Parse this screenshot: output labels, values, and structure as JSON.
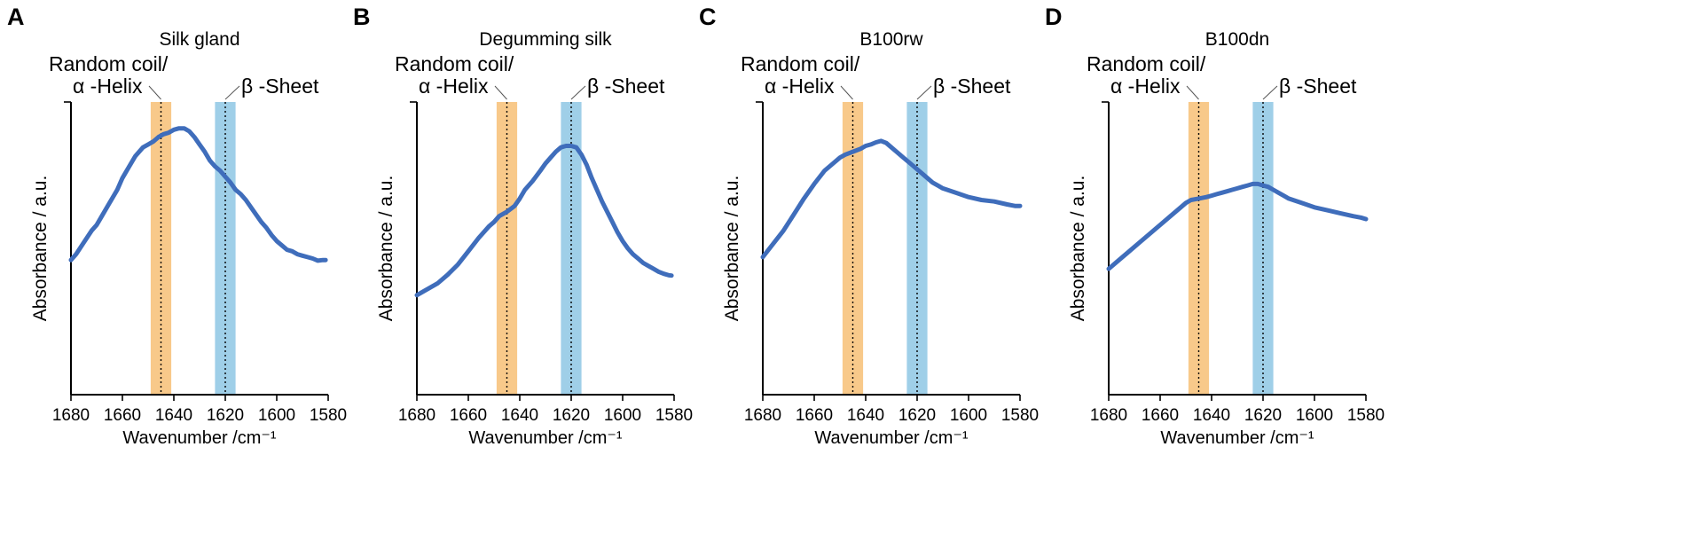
{
  "colors": {
    "curve": "#3f6dbb",
    "random_coil_band": "#f8c98a",
    "beta_sheet_band": "#9fcfe8"
  },
  "shared": {
    "random_coil_label_line1": "Random coil/",
    "random_coil_label_line2": "α -Helix",
    "beta_sheet_label": "β -Sheet"
  },
  "chart_data": [
    {
      "type": "line",
      "panel": "A",
      "title": "Silk gland",
      "xlabel": "Wavenumber /cm⁻¹",
      "ylabel": "Absorbance / a.u.",
      "xlim": [
        1680,
        1580
      ],
      "ylim": [
        0,
        1
      ],
      "xticks": [
        "1680",
        "1660",
        "1640",
        "1620",
        "1600",
        "1580"
      ],
      "bands": [
        {
          "name": "Random coil/α-Helix",
          "range": [
            1641,
            1649
          ],
          "center": 1645
        },
        {
          "name": "β-Sheet",
          "range": [
            1616,
            1624
          ],
          "center": 1620
        }
      ],
      "x": [
        1680,
        1678,
        1675,
        1672,
        1670,
        1668,
        1665,
        1662,
        1660,
        1658,
        1655,
        1652,
        1650,
        1648,
        1646,
        1644,
        1642,
        1640,
        1638,
        1636,
        1634,
        1632,
        1630,
        1628,
        1626,
        1624,
        1622,
        1620,
        1618,
        1616,
        1614,
        1612,
        1610,
        1608,
        1606,
        1604,
        1602,
        1600,
        1598,
        1596,
        1594,
        1592,
        1590,
        1588,
        1586,
        1584,
        1582,
        1581
      ],
      "y": [
        0.46,
        0.48,
        0.52,
        0.56,
        0.58,
        0.61,
        0.655,
        0.7,
        0.74,
        0.77,
        0.815,
        0.845,
        0.855,
        0.865,
        0.88,
        0.89,
        0.895,
        0.905,
        0.91,
        0.91,
        0.9,
        0.88,
        0.855,
        0.83,
        0.8,
        0.78,
        0.765,
        0.745,
        0.725,
        0.7,
        0.685,
        0.665,
        0.64,
        0.615,
        0.59,
        0.57,
        0.545,
        0.525,
        0.51,
        0.495,
        0.49,
        0.48,
        0.475,
        0.47,
        0.465,
        0.458,
        0.46,
        0.46
      ]
    },
    {
      "type": "line",
      "panel": "B",
      "title": "Degumming silk",
      "xlabel": "Wavenumber /cm⁻¹",
      "ylabel": "Absorbance / a.u.",
      "xlim": [
        1680,
        1580
      ],
      "ylim": [
        0,
        1
      ],
      "xticks": [
        "1680",
        "1660",
        "1640",
        "1620",
        "1600",
        "1580"
      ],
      "bands": [
        {
          "name": "Random coil/α-Helix",
          "range": [
            1641,
            1649
          ],
          "center": 1645
        },
        {
          "name": "β-Sheet",
          "range": [
            1616,
            1624
          ],
          "center": 1620
        }
      ],
      "x": [
        1680,
        1676,
        1672,
        1668,
        1664,
        1660,
        1656,
        1652,
        1650,
        1648,
        1645,
        1642,
        1640,
        1638,
        1635,
        1632,
        1630,
        1628,
        1626,
        1624,
        1622,
        1620,
        1618,
        1616,
        1614,
        1612,
        1610,
        1608,
        1606,
        1604,
        1602,
        1600,
        1598,
        1596,
        1594,
        1592,
        1590,
        1588,
        1586,
        1584,
        1582,
        1581
      ],
      "y": [
        0.34,
        0.36,
        0.38,
        0.41,
        0.445,
        0.49,
        0.535,
        0.575,
        0.59,
        0.61,
        0.625,
        0.645,
        0.67,
        0.7,
        0.73,
        0.765,
        0.79,
        0.81,
        0.83,
        0.845,
        0.85,
        0.85,
        0.845,
        0.82,
        0.785,
        0.74,
        0.7,
        0.66,
        0.625,
        0.59,
        0.555,
        0.525,
        0.5,
        0.48,
        0.465,
        0.45,
        0.44,
        0.43,
        0.42,
        0.413,
        0.408,
        0.407
      ]
    },
    {
      "type": "line",
      "panel": "C",
      "title": "B100rw",
      "xlabel": "Wavenumber /cm⁻¹",
      "ylabel": "Absorbance / a.u.",
      "xlim": [
        1680,
        1580
      ],
      "ylim": [
        0,
        1
      ],
      "xticks": [
        "1680",
        "1660",
        "1640",
        "1620",
        "1600",
        "1580"
      ],
      "bands": [
        {
          "name": "Random coil/α-Helix",
          "range": [
            1641,
            1649
          ],
          "center": 1645
        },
        {
          "name": "β-Sheet",
          "range": [
            1616,
            1624
          ],
          "center": 1620
        }
      ],
      "x": [
        1680,
        1676,
        1672,
        1668,
        1664,
        1660,
        1656,
        1652,
        1650,
        1648,
        1645,
        1642,
        1640,
        1638,
        1636,
        1634,
        1632,
        1630,
        1628,
        1626,
        1624,
        1622,
        1620,
        1618,
        1616,
        1614,
        1612,
        1610,
        1605,
        1600,
        1595,
        1590,
        1585,
        1582,
        1580
      ],
      "y": [
        0.47,
        0.515,
        0.56,
        0.615,
        0.67,
        0.72,
        0.765,
        0.795,
        0.81,
        0.82,
        0.83,
        0.84,
        0.85,
        0.855,
        0.862,
        0.867,
        0.86,
        0.845,
        0.83,
        0.815,
        0.8,
        0.785,
        0.77,
        0.755,
        0.74,
        0.725,
        0.715,
        0.705,
        0.69,
        0.675,
        0.665,
        0.66,
        0.65,
        0.645,
        0.645
      ]
    },
    {
      "type": "line",
      "panel": "D",
      "title": "B100dn",
      "xlabel": "Wavenumber /cm⁻¹",
      "ylabel": "Absorbance / a.u.",
      "xlim": [
        1680,
        1580
      ],
      "ylim": [
        0,
        1
      ],
      "xticks": [
        "1680",
        "1660",
        "1640",
        "1620",
        "1600",
        "1580"
      ],
      "bands": [
        {
          "name": "Random coil/α-Helix",
          "range": [
            1641,
            1649
          ],
          "center": 1645
        },
        {
          "name": "β-Sheet",
          "range": [
            1616,
            1624
          ],
          "center": 1620
        }
      ],
      "x": [
        1680,
        1676,
        1672,
        1668,
        1664,
        1660,
        1656,
        1652,
        1650,
        1648,
        1645,
        1642,
        1640,
        1638,
        1636,
        1634,
        1632,
        1630,
        1628,
        1626,
        1624,
        1622,
        1620,
        1618,
        1616,
        1614,
        1612,
        1610,
        1605,
        1600,
        1595,
        1590,
        1585,
        1582,
        1580
      ],
      "y": [
        0.43,
        0.46,
        0.49,
        0.52,
        0.55,
        0.58,
        0.61,
        0.64,
        0.655,
        0.665,
        0.67,
        0.675,
        0.68,
        0.685,
        0.69,
        0.695,
        0.7,
        0.705,
        0.71,
        0.715,
        0.72,
        0.72,
        0.715,
        0.71,
        0.7,
        0.69,
        0.68,
        0.67,
        0.655,
        0.64,
        0.63,
        0.62,
        0.61,
        0.605,
        0.6
      ]
    }
  ]
}
